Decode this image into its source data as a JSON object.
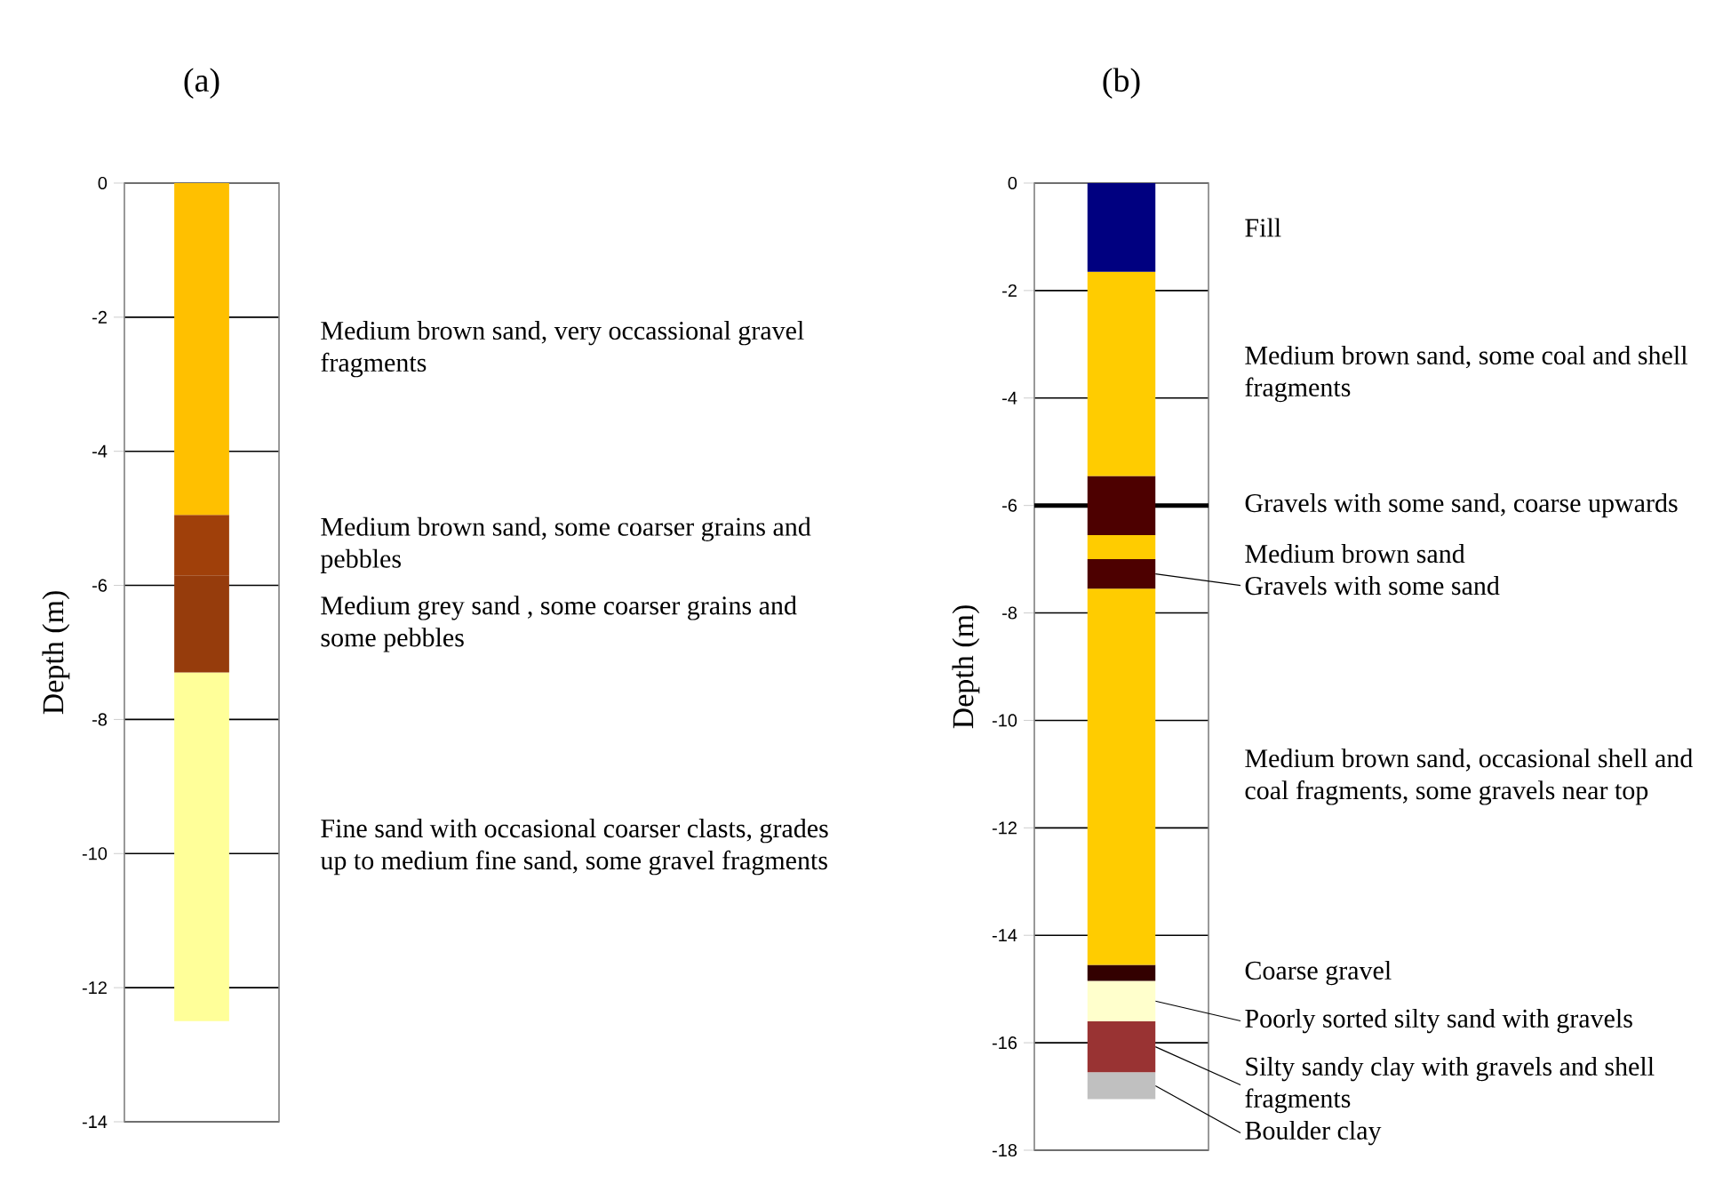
{
  "chart_data": [
    {
      "type": "bar",
      "title": "(a)",
      "ylabel": "Depth (m)",
      "categories": [
        null
      ],
      "stacked": true,
      "grid": "y",
      "ylim": [
        -14,
        0
      ],
      "yticks": [
        0,
        -2,
        -4,
        -6,
        -8,
        -10,
        -12,
        -14
      ],
      "series": [
        {
          "name": "Medium brown sand, very occassional gravel fragments",
          "color": "#ffc000",
          "values": [
            -4.95
          ]
        },
        {
          "name": "Medium brown sand, some coarser grains and pebbles",
          "color": "#a0400a",
          "values": [
            -0.9
          ]
        },
        {
          "name": "Medium grey sand , some coarser grains and some pebbles",
          "color": "#963c0c",
          "values": [
            -1.45
          ]
        },
        {
          "name": "Fine sand with occasional coarser clasts, grades up to medium fine sand, some gravel fragments",
          "color": "#ffff99",
          "values": [
            -5.2
          ]
        }
      ]
    },
    {
      "type": "bar",
      "title": "(b)",
      "ylabel": "Depth (m)",
      "categories": [
        null
      ],
      "stacked": true,
      "grid": "y",
      "ylim": [
        -18,
        0
      ],
      "yticks": [
        0,
        -2,
        -4,
        -6,
        -8,
        -10,
        -12,
        -14,
        -16,
        -18
      ],
      "ref_lines": [
        {
          "axis": "y",
          "value": -6,
          "color": "#000000"
        }
      ],
      "series": [
        {
          "name": "Fill",
          "color": "#000080",
          "values": [
            -1.65
          ]
        },
        {
          "name": "Medium brown sand, some coal and shell fragments",
          "color": "#ffcc00",
          "values": [
            -3.8
          ]
        },
        {
          "name": "Gravels with some sand, coarse upwards",
          "color": "#4d0000",
          "values": [
            -1.1
          ]
        },
        {
          "name": "Medium brown sand",
          "color": "#ffcc00",
          "values": [
            -0.45
          ]
        },
        {
          "name": "Gravels with some sand",
          "color": "#4d0000",
          "values": [
            -0.55
          ]
        },
        {
          "name": "Medium brown sand, occasional shell and coal fragments, some gravels near top",
          "color": "#ffcc00",
          "values": [
            -7.0
          ]
        },
        {
          "name": "Coarse gravel",
          "color": "#330000",
          "values": [
            -0.3
          ]
        },
        {
          "name": "Poorly sorted silty sand with gravels",
          "color": "#ffffcc",
          "values": [
            -0.75
          ]
        },
        {
          "name": "Silty sandy clay with gravels and shell fragments",
          "color": "#993333",
          "values": [
            -0.95
          ]
        },
        {
          "name": "Boulder clay",
          "color": "#c0c0c0",
          "values": [
            -0.5
          ]
        }
      ]
    }
  ]
}
